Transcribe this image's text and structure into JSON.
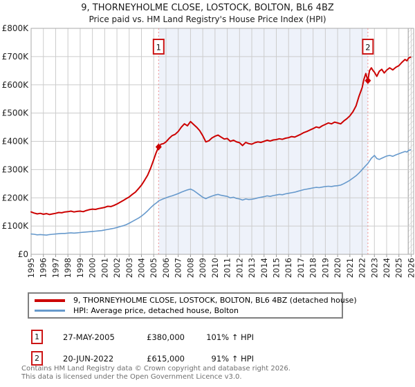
{
  "header": {
    "title": "9, THORNEYHOLME CLOSE, LOSTOCK, BOLTON, BL6 4BZ",
    "subtitle": "Price paid vs. HM Land Registry's House Price Index (HPI)"
  },
  "chart_data": {
    "type": "line",
    "title": "9, THORNEYHOLME CLOSE, LOSTOCK, BOLTON, BL6 4BZ",
    "xlabel": "",
    "ylabel": "",
    "y_unit": "GBP thousands",
    "ylim": [
      0,
      800
    ],
    "xlim": [
      1995,
      2026.2
    ],
    "grid": true,
    "legend_position": "bottom",
    "y_ticks": [
      {
        "value": 0,
        "label": "£0"
      },
      {
        "value": 100,
        "label": "£100K"
      },
      {
        "value": 200,
        "label": "£200K"
      },
      {
        "value": 300,
        "label": "£300K"
      },
      {
        "value": 400,
        "label": "£400K"
      },
      {
        "value": 500,
        "label": "£500K"
      },
      {
        "value": 600,
        "label": "£600K"
      },
      {
        "value": 700,
        "label": "£700K"
      },
      {
        "value": 800,
        "label": "£800K"
      }
    ],
    "x_ticks": [
      1995,
      1996,
      1997,
      1998,
      1999,
      2000,
      2001,
      2002,
      2003,
      2004,
      2005,
      2006,
      2007,
      2008,
      2009,
      2010,
      2011,
      2012,
      2013,
      2014,
      2015,
      2016,
      2017,
      2018,
      2019,
      2020,
      2021,
      2022,
      2023,
      2024,
      2025,
      2026
    ],
    "shaded_span": {
      "from": 2005.4,
      "to": 2022.47,
      "color": "#eef2fa"
    },
    "hatch_span": {
      "from": 2025.76,
      "to": 2026.2
    },
    "sale_markers": [
      {
        "label": "1",
        "x": 2005.4,
        "y": 380
      },
      {
        "label": "2",
        "x": 2022.47,
        "y": 615
      }
    ],
    "series": [
      {
        "name": "9, THORNEYHOLME CLOSE, LOSTOCK, BOLTON, BL6 4BZ (detached house)",
        "color": "#cc0000",
        "width": 2,
        "points": [
          [
            1995,
            150
          ],
          [
            1995.25,
            146
          ],
          [
            1995.5,
            143
          ],
          [
            1995.75,
            145
          ],
          [
            1996,
            142
          ],
          [
            1996.25,
            144
          ],
          [
            1996.5,
            141
          ],
          [
            1996.75,
            143
          ],
          [
            1997,
            145
          ],
          [
            1997.25,
            148
          ],
          [
            1997.5,
            147
          ],
          [
            1997.75,
            150
          ],
          [
            1998,
            151
          ],
          [
            1998.25,
            153
          ],
          [
            1998.5,
            150
          ],
          [
            1998.75,
            152
          ],
          [
            1999,
            153
          ],
          [
            1999.25,
            151
          ],
          [
            1999.5,
            155
          ],
          [
            1999.75,
            158
          ],
          [
            2000,
            160
          ],
          [
            2000.25,
            159
          ],
          [
            2000.5,
            162
          ],
          [
            2000.75,
            164
          ],
          [
            2001,
            166
          ],
          [
            2001.25,
            170
          ],
          [
            2001.5,
            169
          ],
          [
            2001.75,
            173
          ],
          [
            2002,
            178
          ],
          [
            2002.25,
            184
          ],
          [
            2002.5,
            190
          ],
          [
            2002.75,
            197
          ],
          [
            2003,
            203
          ],
          [
            2003.25,
            212
          ],
          [
            2003.5,
            220
          ],
          [
            2003.75,
            232
          ],
          [
            2004,
            245
          ],
          [
            2004.25,
            262
          ],
          [
            2004.5,
            280
          ],
          [
            2004.75,
            305
          ],
          [
            2005,
            335
          ],
          [
            2005.2,
            360
          ],
          [
            2005.4,
            380
          ],
          [
            2005.6,
            390
          ],
          [
            2005.8,
            392
          ],
          [
            2006,
            398
          ],
          [
            2006.25,
            410
          ],
          [
            2006.5,
            420
          ],
          [
            2006.75,
            425
          ],
          [
            2007,
            435
          ],
          [
            2007.25,
            450
          ],
          [
            2007.5,
            462
          ],
          [
            2007.75,
            455
          ],
          [
            2008,
            470
          ],
          [
            2008.25,
            460
          ],
          [
            2008.5,
            450
          ],
          [
            2008.75,
            438
          ],
          [
            2009,
            420
          ],
          [
            2009.25,
            398
          ],
          [
            2009.5,
            402
          ],
          [
            2009.75,
            412
          ],
          [
            2010,
            418
          ],
          [
            2010.25,
            422
          ],
          [
            2010.5,
            415
          ],
          [
            2010.75,
            408
          ],
          [
            2011,
            410
          ],
          [
            2011.25,
            400
          ],
          [
            2011.5,
            404
          ],
          [
            2011.75,
            398
          ],
          [
            2012,
            395
          ],
          [
            2012.25,
            385
          ],
          [
            2012.5,
            396
          ],
          [
            2012.75,
            392
          ],
          [
            2013,
            390
          ],
          [
            2013.25,
            395
          ],
          [
            2013.5,
            398
          ],
          [
            2013.75,
            396
          ],
          [
            2014,
            400
          ],
          [
            2014.25,
            404
          ],
          [
            2014.5,
            401
          ],
          [
            2014.75,
            405
          ],
          [
            2015,
            406
          ],
          [
            2015.25,
            409
          ],
          [
            2015.5,
            407
          ],
          [
            2015.75,
            411
          ],
          [
            2016,
            413
          ],
          [
            2016.25,
            417
          ],
          [
            2016.5,
            415
          ],
          [
            2016.75,
            420
          ],
          [
            2017,
            425
          ],
          [
            2017.25,
            431
          ],
          [
            2017.5,
            435
          ],
          [
            2017.75,
            440
          ],
          [
            2018,
            445
          ],
          [
            2018.25,
            451
          ],
          [
            2018.5,
            448
          ],
          [
            2018.75,
            455
          ],
          [
            2019,
            460
          ],
          [
            2019.25,
            465
          ],
          [
            2019.5,
            462
          ],
          [
            2019.75,
            468
          ],
          [
            2020,
            465
          ],
          [
            2020.25,
            462
          ],
          [
            2020.5,
            472
          ],
          [
            2020.75,
            480
          ],
          [
            2021,
            490
          ],
          [
            2021.25,
            505
          ],
          [
            2021.5,
            525
          ],
          [
            2021.75,
            560
          ],
          [
            2022,
            590
          ],
          [
            2022.15,
            620
          ],
          [
            2022.3,
            640
          ],
          [
            2022.47,
            615
          ],
          [
            2022.6,
            650
          ],
          [
            2022.75,
            660
          ],
          [
            2022.9,
            650
          ],
          [
            2023,
            645
          ],
          [
            2023.2,
            630
          ],
          [
            2023.4,
            648
          ],
          [
            2023.6,
            655
          ],
          [
            2023.8,
            642
          ],
          [
            2024,
            652
          ],
          [
            2024.25,
            660
          ],
          [
            2024.5,
            653
          ],
          [
            2024.75,
            662
          ],
          [
            2025,
            668
          ],
          [
            2025.25,
            680
          ],
          [
            2025.5,
            690
          ],
          [
            2025.65,
            685
          ],
          [
            2025.8,
            695
          ],
          [
            2025.95,
            698
          ]
        ]
      },
      {
        "name": "HPI: Average price, detached house, Bolton",
        "color": "#6699cc",
        "width": 1.6,
        "points": [
          [
            1995,
            72
          ],
          [
            1995.25,
            71
          ],
          [
            1995.5,
            69
          ],
          [
            1995.75,
            70
          ],
          [
            1996,
            69
          ],
          [
            1996.25,
            68
          ],
          [
            1996.5,
            70
          ],
          [
            1996.75,
            71
          ],
          [
            1997,
            72
          ],
          [
            1997.25,
            73
          ],
          [
            1997.5,
            74
          ],
          [
            1997.75,
            74
          ],
          [
            1998,
            75
          ],
          [
            1998.25,
            76
          ],
          [
            1998.5,
            75
          ],
          [
            1998.75,
            76
          ],
          [
            1999,
            77
          ],
          [
            1999.25,
            78
          ],
          [
            1999.5,
            79
          ],
          [
            1999.75,
            80
          ],
          [
            2000,
            81
          ],
          [
            2000.25,
            82
          ],
          [
            2000.5,
            83
          ],
          [
            2000.75,
            84
          ],
          [
            2001,
            86
          ],
          [
            2001.25,
            88
          ],
          [
            2001.5,
            90
          ],
          [
            2001.75,
            92
          ],
          [
            2002,
            95
          ],
          [
            2002.25,
            98
          ],
          [
            2002.5,
            101
          ],
          [
            2002.75,
            105
          ],
          [
            2003,
            110
          ],
          [
            2003.25,
            116
          ],
          [
            2003.5,
            122
          ],
          [
            2003.75,
            128
          ],
          [
            2004,
            135
          ],
          [
            2004.25,
            144
          ],
          [
            2004.5,
            154
          ],
          [
            2004.75,
            165
          ],
          [
            2005,
            175
          ],
          [
            2005.25,
            183
          ],
          [
            2005.4,
            189
          ],
          [
            2005.7,
            195
          ],
          [
            2006,
            200
          ],
          [
            2006.25,
            204
          ],
          [
            2006.5,
            207
          ],
          [
            2006.75,
            211
          ],
          [
            2007,
            215
          ],
          [
            2007.25,
            220
          ],
          [
            2007.5,
            224
          ],
          [
            2007.75,
            228
          ],
          [
            2008,
            231
          ],
          [
            2008.25,
            226
          ],
          [
            2008.5,
            218
          ],
          [
            2008.75,
            210
          ],
          [
            2009,
            202
          ],
          [
            2009.25,
            197
          ],
          [
            2009.5,
            202
          ],
          [
            2009.75,
            206
          ],
          [
            2010,
            210
          ],
          [
            2010.25,
            212
          ],
          [
            2010.5,
            209
          ],
          [
            2010.75,
            207
          ],
          [
            2011,
            205
          ],
          [
            2011.25,
            200
          ],
          [
            2011.5,
            202
          ],
          [
            2011.75,
            198
          ],
          [
            2012,
            196
          ],
          [
            2012.25,
            192
          ],
          [
            2012.5,
            196
          ],
          [
            2012.75,
            194
          ],
          [
            2013,
            195
          ],
          [
            2013.25,
            197
          ],
          [
            2013.5,
            200
          ],
          [
            2013.75,
            202
          ],
          [
            2014,
            204
          ],
          [
            2014.25,
            207
          ],
          [
            2014.5,
            205
          ],
          [
            2014.75,
            208
          ],
          [
            2015,
            210
          ],
          [
            2015.25,
            212
          ],
          [
            2015.5,
            211
          ],
          [
            2015.75,
            214
          ],
          [
            2016,
            216
          ],
          [
            2016.25,
            218
          ],
          [
            2016.5,
            220
          ],
          [
            2016.75,
            223
          ],
          [
            2017,
            226
          ],
          [
            2017.25,
            229
          ],
          [
            2017.5,
            231
          ],
          [
            2017.75,
            233
          ],
          [
            2018,
            235
          ],
          [
            2018.25,
            237
          ],
          [
            2018.5,
            236
          ],
          [
            2018.75,
            238
          ],
          [
            2019,
            240
          ],
          [
            2019.25,
            241
          ],
          [
            2019.5,
            240
          ],
          [
            2019.75,
            242
          ],
          [
            2020,
            243
          ],
          [
            2020.25,
            245
          ],
          [
            2020.5,
            250
          ],
          [
            2020.75,
            256
          ],
          [
            2021,
            262
          ],
          [
            2021.25,
            270
          ],
          [
            2021.5,
            278
          ],
          [
            2021.75,
            288
          ],
          [
            2022,
            300
          ],
          [
            2022.25,
            312
          ],
          [
            2022.47,
            322
          ],
          [
            2022.75,
            340
          ],
          [
            2023,
            350
          ],
          [
            2023.2,
            339
          ],
          [
            2023.4,
            336
          ],
          [
            2023.6,
            340
          ],
          [
            2023.8,
            344
          ],
          [
            2024,
            348
          ],
          [
            2024.25,
            350
          ],
          [
            2024.5,
            347
          ],
          [
            2024.75,
            352
          ],
          [
            2025,
            356
          ],
          [
            2025.25,
            360
          ],
          [
            2025.5,
            364
          ],
          [
            2025.65,
            362
          ],
          [
            2025.8,
            368
          ],
          [
            2025.95,
            370
          ]
        ]
      }
    ]
  },
  "legend": {
    "items": [
      {
        "label": "9, THORNEYHOLME CLOSE, LOSTOCK, BOLTON, BL6 4BZ (detached house)",
        "color": "#cc0000"
      },
      {
        "label": "HPI: Average price, detached house, Bolton",
        "color": "#6699cc"
      }
    ]
  },
  "transactions": [
    {
      "num": "1",
      "date": "27-MAY-2005",
      "price": "£380,000",
      "hpi_change": "101% ↑ HPI"
    },
    {
      "num": "2",
      "date": "20-JUN-2022",
      "price": "£615,000",
      "hpi_change": "91% ↑ HPI"
    }
  ],
  "footer": {
    "line1": "Contains HM Land Registry data © Crown copyright and database right 2026.",
    "line2": "This data is licensed under the Open Government Licence v3.0."
  },
  "colors": {
    "accent_red": "#cc0000",
    "hpi_blue": "#6699cc",
    "sale_dash": "#f09090",
    "shade": "#eef2fa",
    "grid": "#cccccc",
    "border": "#aaaaaa"
  }
}
